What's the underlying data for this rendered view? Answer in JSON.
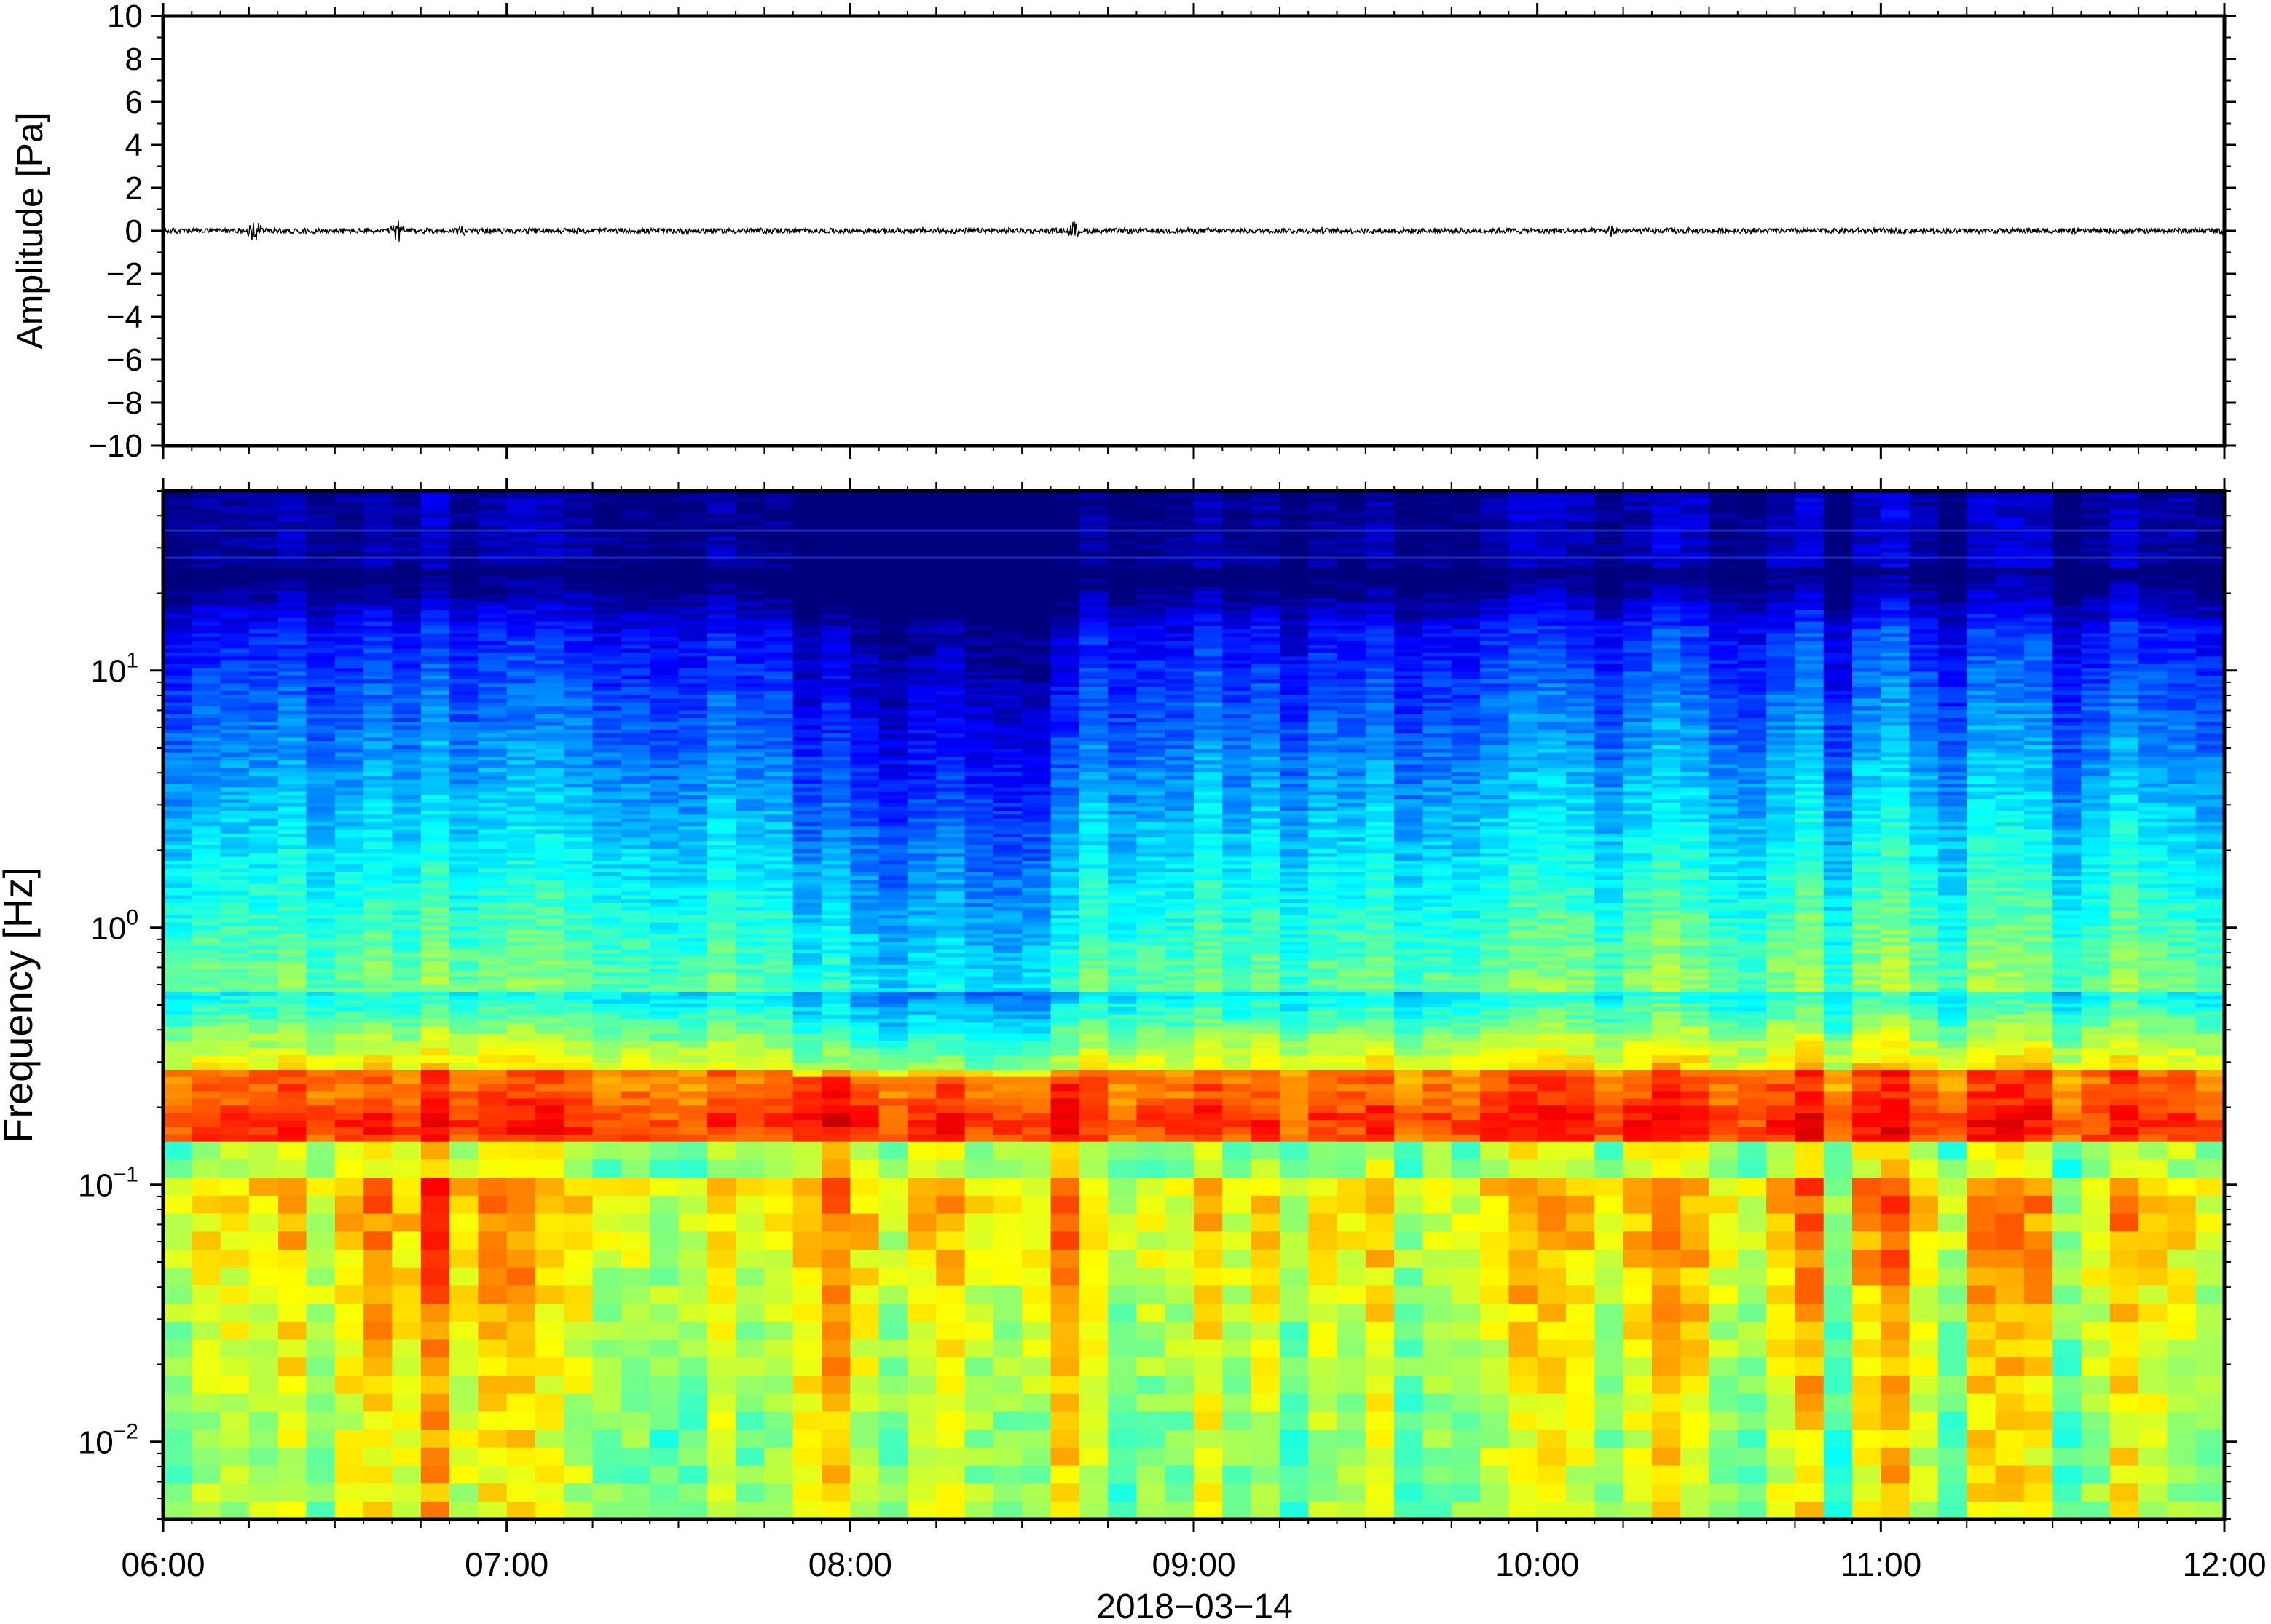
{
  "chart_data": [
    {
      "type": "line",
      "panel": "waveform",
      "ylabel": "Amplitude [Pa]",
      "ylim": [
        -10,
        10
      ],
      "yticks": [
        -10,
        -8,
        -6,
        -4,
        -2,
        0,
        2,
        4,
        6,
        8,
        10
      ],
      "ytick_labels": [
        "−10",
        "−8",
        "−6",
        "−4",
        "−2",
        "0",
        "2",
        "4",
        "6",
        "8",
        "10"
      ],
      "xlim": [
        "2018-03-14T06:00",
        "2018-03-14T12:00"
      ],
      "bursts": [
        {
          "t": "2018-03-14T06:16",
          "amp": 0.7
        },
        {
          "t": "2018-03-14T06:41",
          "amp": 0.6
        },
        {
          "t": "2018-03-14T06:52",
          "amp": 0.35
        },
        {
          "t": "2018-03-14T08:39",
          "amp": 0.5
        },
        {
          "t": "2018-03-14T10:13",
          "amp": 0.3
        }
      ],
      "baseline_noise_amp": 0.15,
      "color": "#000000"
    },
    {
      "type": "heatmap",
      "panel": "spectrogram",
      "ylabel": "Frequency [Hz]",
      "yscale": "log",
      "ylim": [
        0.005,
        50
      ],
      "yticks": [
        0.01,
        0.1,
        1,
        10
      ],
      "ytick_labels": [
        {
          "base": "10",
          "exp": "−2"
        },
        {
          "base": "10",
          "exp": "−1"
        },
        {
          "base": "10",
          "exp": "0"
        },
        {
          "base": "10",
          "exp": "1"
        }
      ],
      "xlim": [
        "2018-03-14T06:00",
        "2018-03-14T12:00"
      ],
      "colormap": "jet",
      "features": {
        "microbarom_band_hz": [
          0.14,
          0.28
        ],
        "microbarom_peak_hz": 0.17,
        "quiet_interval": [
          "2018-03-14T07:48",
          "2018-03-14T08:38"
        ],
        "energetic_interval": [
          "2018-03-14T06:30",
          "2018-03-14T07:05"
        ],
        "high_freq_lines_hz": [
          27.5,
          35
        ]
      },
      "colors": {
        "cmap": [
          "#00007f",
          "#0000ff",
          "#007fff",
          "#00ffff",
          "#7fff7f",
          "#ffff00",
          "#ff7f00",
          "#ff0000",
          "#7f0000"
        ]
      }
    }
  ],
  "xaxis": {
    "tick_labels": [
      "06:00",
      "07:00",
      "08:00",
      "09:00",
      "10:00",
      "11:00",
      "12:00"
    ],
    "date_label": "2018−03−14"
  }
}
